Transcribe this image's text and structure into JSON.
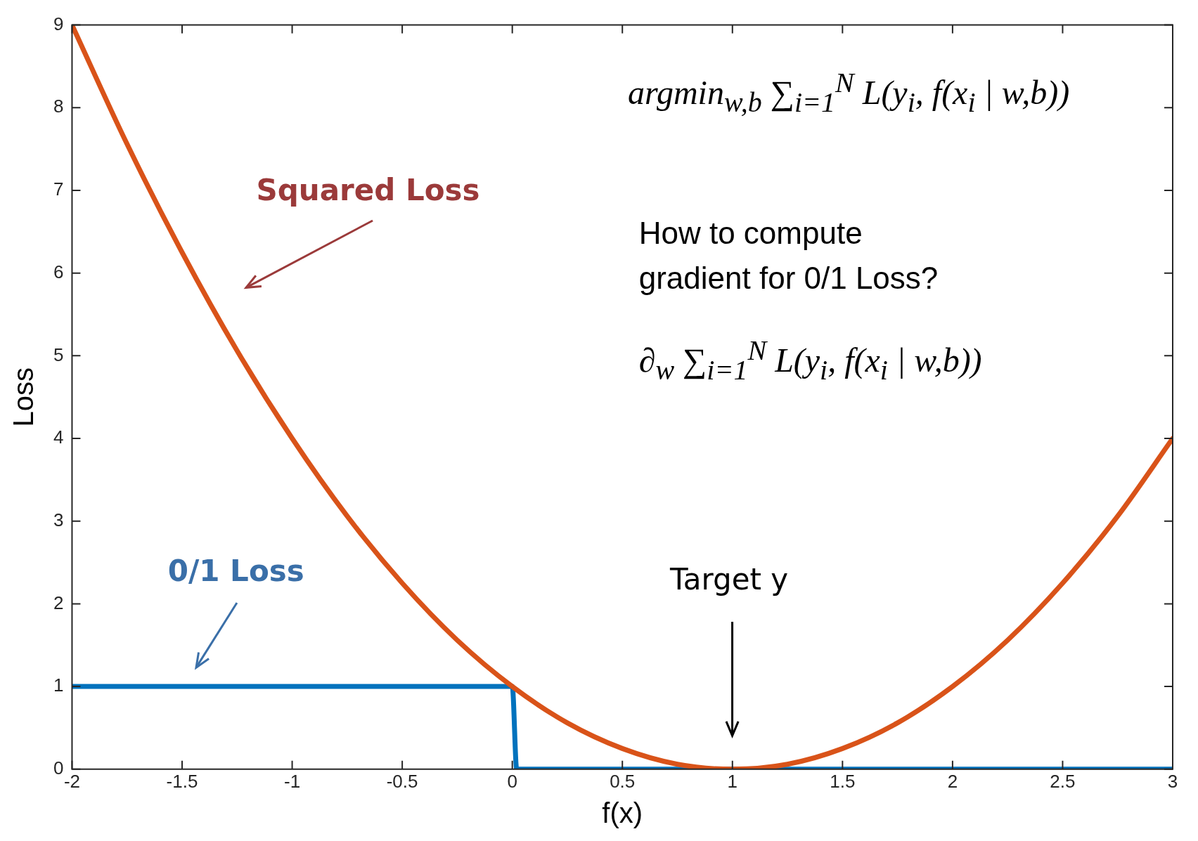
{
  "chart_data": {
    "type": "line",
    "xlabel": "f(x)",
    "ylabel": "Loss",
    "xlim": [
      -2,
      3
    ],
    "ylim": [
      0,
      9
    ],
    "xticks": [
      -2,
      -1.5,
      -1,
      -0.5,
      0,
      0.5,
      1,
      1.5,
      2,
      2.5,
      3
    ],
    "yticks": [
      0,
      1,
      2,
      3,
      4,
      5,
      6,
      7,
      8,
      9
    ],
    "grid": false,
    "marker": "none",
    "line_style": "solid",
    "series": [
      {
        "color": "#d95319",
        "x": [
          -2,
          -1.75,
          -1.5,
          -1.25,
          -1,
          -0.75,
          -0.5,
          -0.25,
          0,
          0.25,
          0.5,
          0.75,
          1,
          1.25,
          1.5,
          1.75,
          2,
          2.25,
          2.5,
          2.75,
          3
        ],
        "values": [
          9,
          7.56,
          6.25,
          5.06,
          4,
          3.06,
          2.25,
          1.56,
          1,
          0.56,
          0.25,
          0.06,
          0,
          0.06,
          0.25,
          0.56,
          1,
          1.56,
          2.25,
          3.06,
          4
        ]
      },
      {
        "color": "#0072bd",
        "x": [
          -2,
          0,
          0.02,
          3
        ],
        "values": [
          1,
          1,
          0,
          0
        ]
      }
    ],
    "annotations": [
      "Squared Loss",
      "0/1 Loss",
      "Target y",
      "argmin$_{w,b}$ ∑$_{i=1}$$^{N}$ L(y$_{i}$, f(x$_{i}$ | w,b))",
      "How to compute gradient for 0/1 Loss?",
      "∂$_{w}$ ∑$_{i=1}$$^{N}$ L(y$_{i}$, f(x$_{i}$ | w,b))"
    ]
  }
}
